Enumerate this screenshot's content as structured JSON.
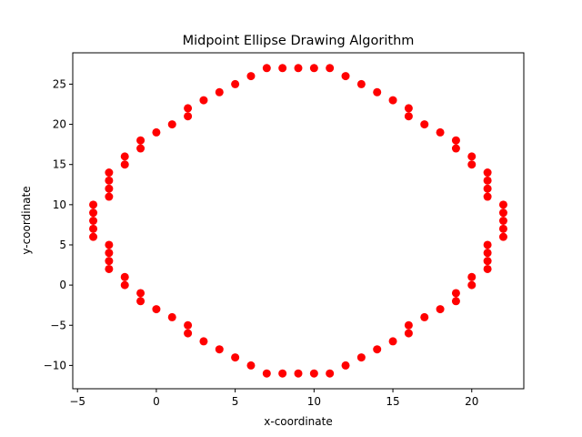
{
  "chart_data": {
    "type": "scatter",
    "title": "Midpoint Ellipse Drawing Algorithm",
    "xlabel": "x-coordinate",
    "ylabel": "y-coordinate",
    "xlim": [
      -5.3,
      23.3
    ],
    "ylim": [
      -12.9,
      28.9
    ],
    "xticks": [
      -5,
      0,
      5,
      10,
      15,
      20
    ],
    "yticks": [
      -10,
      -5,
      0,
      5,
      10,
      15,
      20,
      25
    ],
    "grid": false,
    "marker_color": "#ff0000",
    "series": [
      {
        "x": [
          7,
          8,
          9,
          10,
          11,
          12,
          13,
          14,
          15,
          16,
          16,
          17,
          18,
          19,
          19,
          20,
          20,
          21,
          21,
          21,
          21,
          22,
          22,
          22,
          22,
          22,
          21,
          21,
          21,
          21,
          20,
          20,
          19,
          19,
          18,
          17,
          16,
          16,
          15,
          14,
          13,
          12,
          11,
          10,
          9,
          8,
          7,
          6,
          5,
          4,
          3,
          2,
          2,
          1,
          0,
          -1,
          -1,
          -2,
          -2,
          -3,
          -3,
          -3,
          -3,
          -4,
          -4,
          -4,
          -4,
          -4,
          -3,
          -3,
          -3,
          -3,
          -2,
          -2,
          -1,
          -1,
          0,
          1,
          2,
          2,
          3,
          4,
          5,
          6
        ],
        "y": [
          27,
          27,
          27,
          27,
          27,
          26,
          25,
          24,
          23,
          22,
          21,
          20,
          19,
          18,
          17,
          16,
          15,
          14,
          13,
          12,
          11,
          10,
          9,
          8,
          7,
          6,
          5,
          4,
          3,
          2,
          1,
          0,
          -1,
          -2,
          -3,
          -4,
          -5,
          -6,
          -7,
          -8,
          -9,
          -10,
          -11,
          -11,
          -11,
          -11,
          -11,
          -10,
          -9,
          -8,
          -7,
          -6,
          -5,
          -4,
          -3,
          -2,
          -1,
          0,
          1,
          2,
          3,
          4,
          5,
          6,
          7,
          8,
          9,
          10,
          11,
          12,
          13,
          14,
          15,
          16,
          17,
          18,
          19,
          20,
          21,
          22,
          23,
          24,
          25,
          26
        ]
      }
    ]
  }
}
